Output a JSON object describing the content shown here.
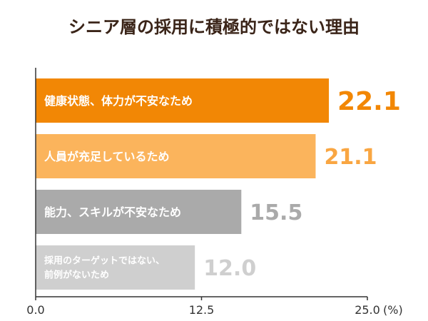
{
  "title": "シニア層の採用に積極的ではない理由",
  "chart_data": {
    "type": "bar",
    "orientation": "horizontal",
    "title": "シニア層の採用に積極的ではない理由",
    "categories": [
      "健康状態、体力が不安なため",
      "人員が充足しているため",
      "能力、スキルが不安なため",
      "採用のターゲットではない、前例がないため"
    ],
    "category_lines": [
      [
        "健康状態、体力が不安なため"
      ],
      [
        "人員が充足しているため"
      ],
      [
        "能力、スキルが不安なため"
      ],
      [
        "採用のターゲットではない、",
        "前例がないため"
      ]
    ],
    "values": [
      22.1,
      21.1,
      15.5,
      12.0
    ],
    "value_labels": [
      "22.1",
      "21.1",
      "15.5",
      "12.0"
    ],
    "bar_colors": [
      "#f28705",
      "#fbb45c",
      "#aaaaaa",
      "#cfcfcf"
    ],
    "value_label_colors": [
      "#f28705",
      "#f9a642",
      "#aaaaaa",
      "#cfcfcf"
    ],
    "xlim": [
      0,
      25.0
    ],
    "ticks": [
      "0.0",
      "12.5",
      "25.0"
    ],
    "tick_values": [
      0,
      12.5,
      25.0
    ],
    "unit": "(%)",
    "grid": false,
    "legend": "none"
  }
}
